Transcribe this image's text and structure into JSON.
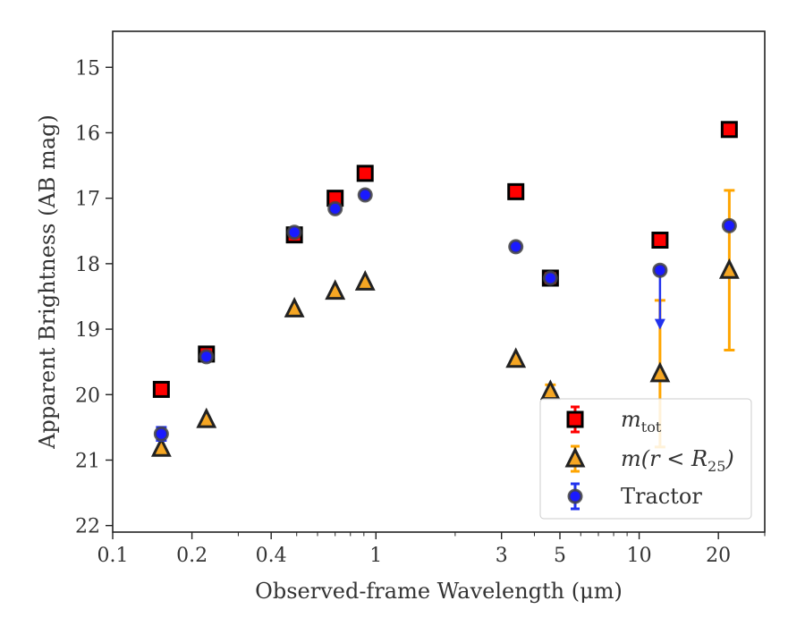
{
  "chart_data": {
    "type": "scatter",
    "xlabel": "Observed-frame Wavelength (μm)",
    "ylabel": "Apparent Brightness (AB mag)",
    "x_scale": "log",
    "xlim": [
      0.1,
      30
    ],
    "ylim": [
      22.1,
      14.45
    ],
    "y_inverted": true,
    "x_ticks": [
      {
        "value": 0.1,
        "label": "0.1"
      },
      {
        "value": 0.2,
        "label": "0.2"
      },
      {
        "value": 0.4,
        "label": "0.4"
      },
      {
        "value": 1,
        "label": "1"
      },
      {
        "value": 3,
        "label": "3"
      },
      {
        "value": 5,
        "label": "5"
      },
      {
        "value": 10,
        "label": "10"
      },
      {
        "value": 20,
        "label": "20"
      }
    ],
    "y_ticks": [
      {
        "value": 15,
        "label": "15"
      },
      {
        "value": 16,
        "label": "16"
      },
      {
        "value": 17,
        "label": "17"
      },
      {
        "value": 18,
        "label": "18"
      },
      {
        "value": 19,
        "label": "19"
      },
      {
        "value": 20,
        "label": "20"
      },
      {
        "value": 21,
        "label": "21"
      },
      {
        "value": 22,
        "label": "22"
      }
    ],
    "grid": false,
    "legend_position": "lower-right",
    "series": [
      {
        "name": "m_tot",
        "legend_main": "m",
        "legend_sub": "tot",
        "marker": "square",
        "fill": "#ff0000",
        "edge": "#000000",
        "err_color": "#ff0000",
        "points": [
          {
            "x": 0.153,
            "y": 19.92
          },
          {
            "x": 0.227,
            "y": 19.38
          },
          {
            "x": 0.49,
            "y": 17.56
          },
          {
            "x": 0.7,
            "y": 17.0
          },
          {
            "x": 0.91,
            "y": 16.62
          },
          {
            "x": 3.4,
            "y": 16.9
          },
          {
            "x": 4.6,
            "y": 18.22
          },
          {
            "x": 12.0,
            "y": 17.64
          },
          {
            "x": 22.0,
            "y": 15.95
          }
        ]
      },
      {
        "name": "m(r<R_25)",
        "legend_main": "m(r < R",
        "legend_sub": "25",
        "legend_tail": ")",
        "marker": "triangle",
        "fill": "#f5a623",
        "edge": "#222222",
        "err_color": "#ffa500",
        "points": [
          {
            "x": 0.153,
            "y": 20.82
          },
          {
            "x": 0.227,
            "y": 20.38
          },
          {
            "x": 0.49,
            "y": 18.69
          },
          {
            "x": 0.7,
            "y": 18.42
          },
          {
            "x": 0.91,
            "y": 18.28
          },
          {
            "x": 3.4,
            "y": 19.46
          },
          {
            "x": 4.6,
            "y": 19.95,
            "err": 0.1
          },
          {
            "x": 12.0,
            "y": 19.68,
            "err": 1.12
          },
          {
            "x": 22.0,
            "y": 18.1,
            "err": 1.22
          }
        ]
      },
      {
        "name": "Tractor",
        "legend_main": "Tractor",
        "marker": "circle",
        "fill": "#1a1aff",
        "edge": "#444444",
        "err_color": "#2233ee",
        "points": [
          {
            "x": 0.153,
            "y": 20.6,
            "err": 0.1
          },
          {
            "x": 0.227,
            "y": 19.42
          },
          {
            "x": 0.49,
            "y": 17.52
          },
          {
            "x": 0.7,
            "y": 17.16
          },
          {
            "x": 0.91,
            "y": 16.95
          },
          {
            "x": 3.4,
            "y": 17.74
          },
          {
            "x": 4.6,
            "y": 18.22
          },
          {
            "x": 12.0,
            "y": 18.1,
            "upper_limit_to": 18.98
          },
          {
            "x": 22.0,
            "y": 17.42
          }
        ]
      }
    ]
  }
}
